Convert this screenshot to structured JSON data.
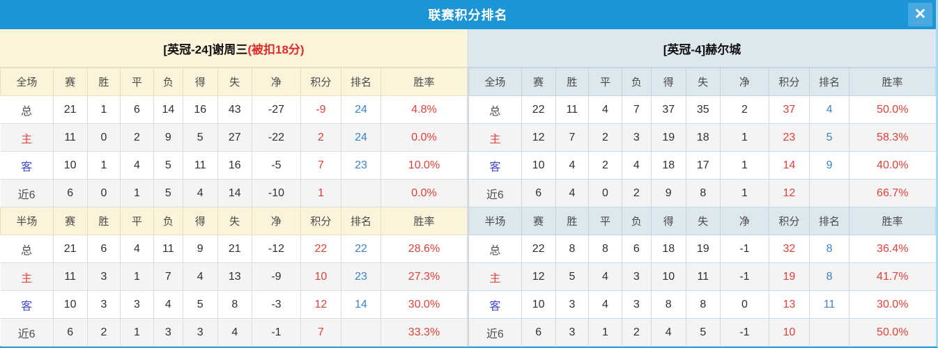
{
  "dialog": {
    "title": "联赛积分排名",
    "close_icon": "✕"
  },
  "colors": {
    "titlebar_bg": "#1c95d7",
    "close_bg": "#48a9e0",
    "left_header_bg": "#fbf3da",
    "right_header_bg": "#dde7ee",
    "stripe_bg": "#f4f4f4",
    "stat_red": "#e33d35",
    "rank_blue": "#3a83c6",
    "home_red": "#e04341",
    "away_blue": "#4646cf",
    "note_red": "#e02b2b",
    "bottom_border": "#2b9fd9",
    "right_border": "#a6d9f2"
  },
  "teams": [
    {
      "title_main": "[英冠-24]谢周三",
      "title_note": "(被扣18分)",
      "full": {
        "header": [
          "全场",
          "赛",
          "胜",
          "平",
          "负",
          "得",
          "失",
          "净",
          "积分",
          "排名",
          "胜率"
        ],
        "rows": [
          {
            "label": "总",
            "label_style": "plain",
            "cells": [
              "21",
              "1",
              "6",
              "14",
              "16",
              "43",
              "-27"
            ],
            "points": "-9",
            "rank": "24",
            "rate": "4.8%"
          },
          {
            "label": "主",
            "label_style": "home",
            "cells": [
              "11",
              "0",
              "2",
              "9",
              "5",
              "27",
              "-22"
            ],
            "points": "2",
            "rank": "24",
            "rate": "0.0%"
          },
          {
            "label": "客",
            "label_style": "away",
            "cells": [
              "10",
              "1",
              "4",
              "5",
              "11",
              "16",
              "-5"
            ],
            "points": "7",
            "rank": "23",
            "rate": "10.0%"
          },
          {
            "label": "近6",
            "label_style": "plain",
            "cells": [
              "6",
              "0",
              "1",
              "5",
              "4",
              "14",
              "-10"
            ],
            "points": "1",
            "rank": "",
            "rate": "0.0%"
          }
        ]
      },
      "half": {
        "header": [
          "半场",
          "赛",
          "胜",
          "平",
          "负",
          "得",
          "失",
          "净",
          "积分",
          "排名",
          "胜率"
        ],
        "rows": [
          {
            "label": "总",
            "label_style": "plain",
            "cells": [
              "21",
              "6",
              "4",
              "11",
              "9",
              "21",
              "-12"
            ],
            "points": "22",
            "rank": "22",
            "rate": "28.6%"
          },
          {
            "label": "主",
            "label_style": "home",
            "cells": [
              "11",
              "3",
              "1",
              "7",
              "4",
              "13",
              "-9"
            ],
            "points": "10",
            "rank": "23",
            "rate": "27.3%"
          },
          {
            "label": "客",
            "label_style": "away",
            "cells": [
              "10",
              "3",
              "3",
              "4",
              "5",
              "8",
              "-3"
            ],
            "points": "12",
            "rank": "14",
            "rate": "30.0%"
          },
          {
            "label": "近6",
            "label_style": "plain",
            "cells": [
              "6",
              "2",
              "1",
              "3",
              "3",
              "4",
              "-1"
            ],
            "points": "7",
            "rank": "",
            "rate": "33.3%"
          }
        ]
      }
    },
    {
      "title_main": "[英冠-4]赫尔城",
      "title_note": "",
      "full": {
        "header": [
          "全场",
          "赛",
          "胜",
          "平",
          "负",
          "得",
          "失",
          "净",
          "积分",
          "排名",
          "胜率"
        ],
        "rows": [
          {
            "label": "总",
            "label_style": "plain",
            "cells": [
              "22",
              "11",
              "4",
              "7",
              "37",
              "35",
              "2"
            ],
            "points": "37",
            "rank": "4",
            "rate": "50.0%"
          },
          {
            "label": "主",
            "label_style": "home",
            "cells": [
              "12",
              "7",
              "2",
              "3",
              "19",
              "18",
              "1"
            ],
            "points": "23",
            "rank": "5",
            "rate": "58.3%"
          },
          {
            "label": "客",
            "label_style": "away",
            "cells": [
              "10",
              "4",
              "2",
              "4",
              "18",
              "17",
              "1"
            ],
            "points": "14",
            "rank": "9",
            "rate": "40.0%"
          },
          {
            "label": "近6",
            "label_style": "plain",
            "cells": [
              "6",
              "4",
              "0",
              "2",
              "9",
              "8",
              "1"
            ],
            "points": "12",
            "rank": "",
            "rate": "66.7%"
          }
        ]
      },
      "half": {
        "header": [
          "半场",
          "赛",
          "胜",
          "平",
          "负",
          "得",
          "失",
          "净",
          "积分",
          "排名",
          "胜率"
        ],
        "rows": [
          {
            "label": "总",
            "label_style": "plain",
            "cells": [
              "22",
              "8",
              "8",
              "6",
              "18",
              "19",
              "-1"
            ],
            "points": "32",
            "rank": "8",
            "rate": "36.4%"
          },
          {
            "label": "主",
            "label_style": "home",
            "cells": [
              "12",
              "5",
              "4",
              "3",
              "10",
              "11",
              "-1"
            ],
            "points": "19",
            "rank": "8",
            "rate": "41.7%"
          },
          {
            "label": "客",
            "label_style": "away",
            "cells": [
              "10",
              "3",
              "4",
              "3",
              "8",
              "8",
              "0"
            ],
            "points": "13",
            "rank": "11",
            "rate": "30.0%"
          },
          {
            "label": "近6",
            "label_style": "plain",
            "cells": [
              "6",
              "3",
              "1",
              "2",
              "4",
              "5",
              "-1"
            ],
            "points": "10",
            "rank": "",
            "rate": "50.0%"
          }
        ]
      }
    }
  ]
}
